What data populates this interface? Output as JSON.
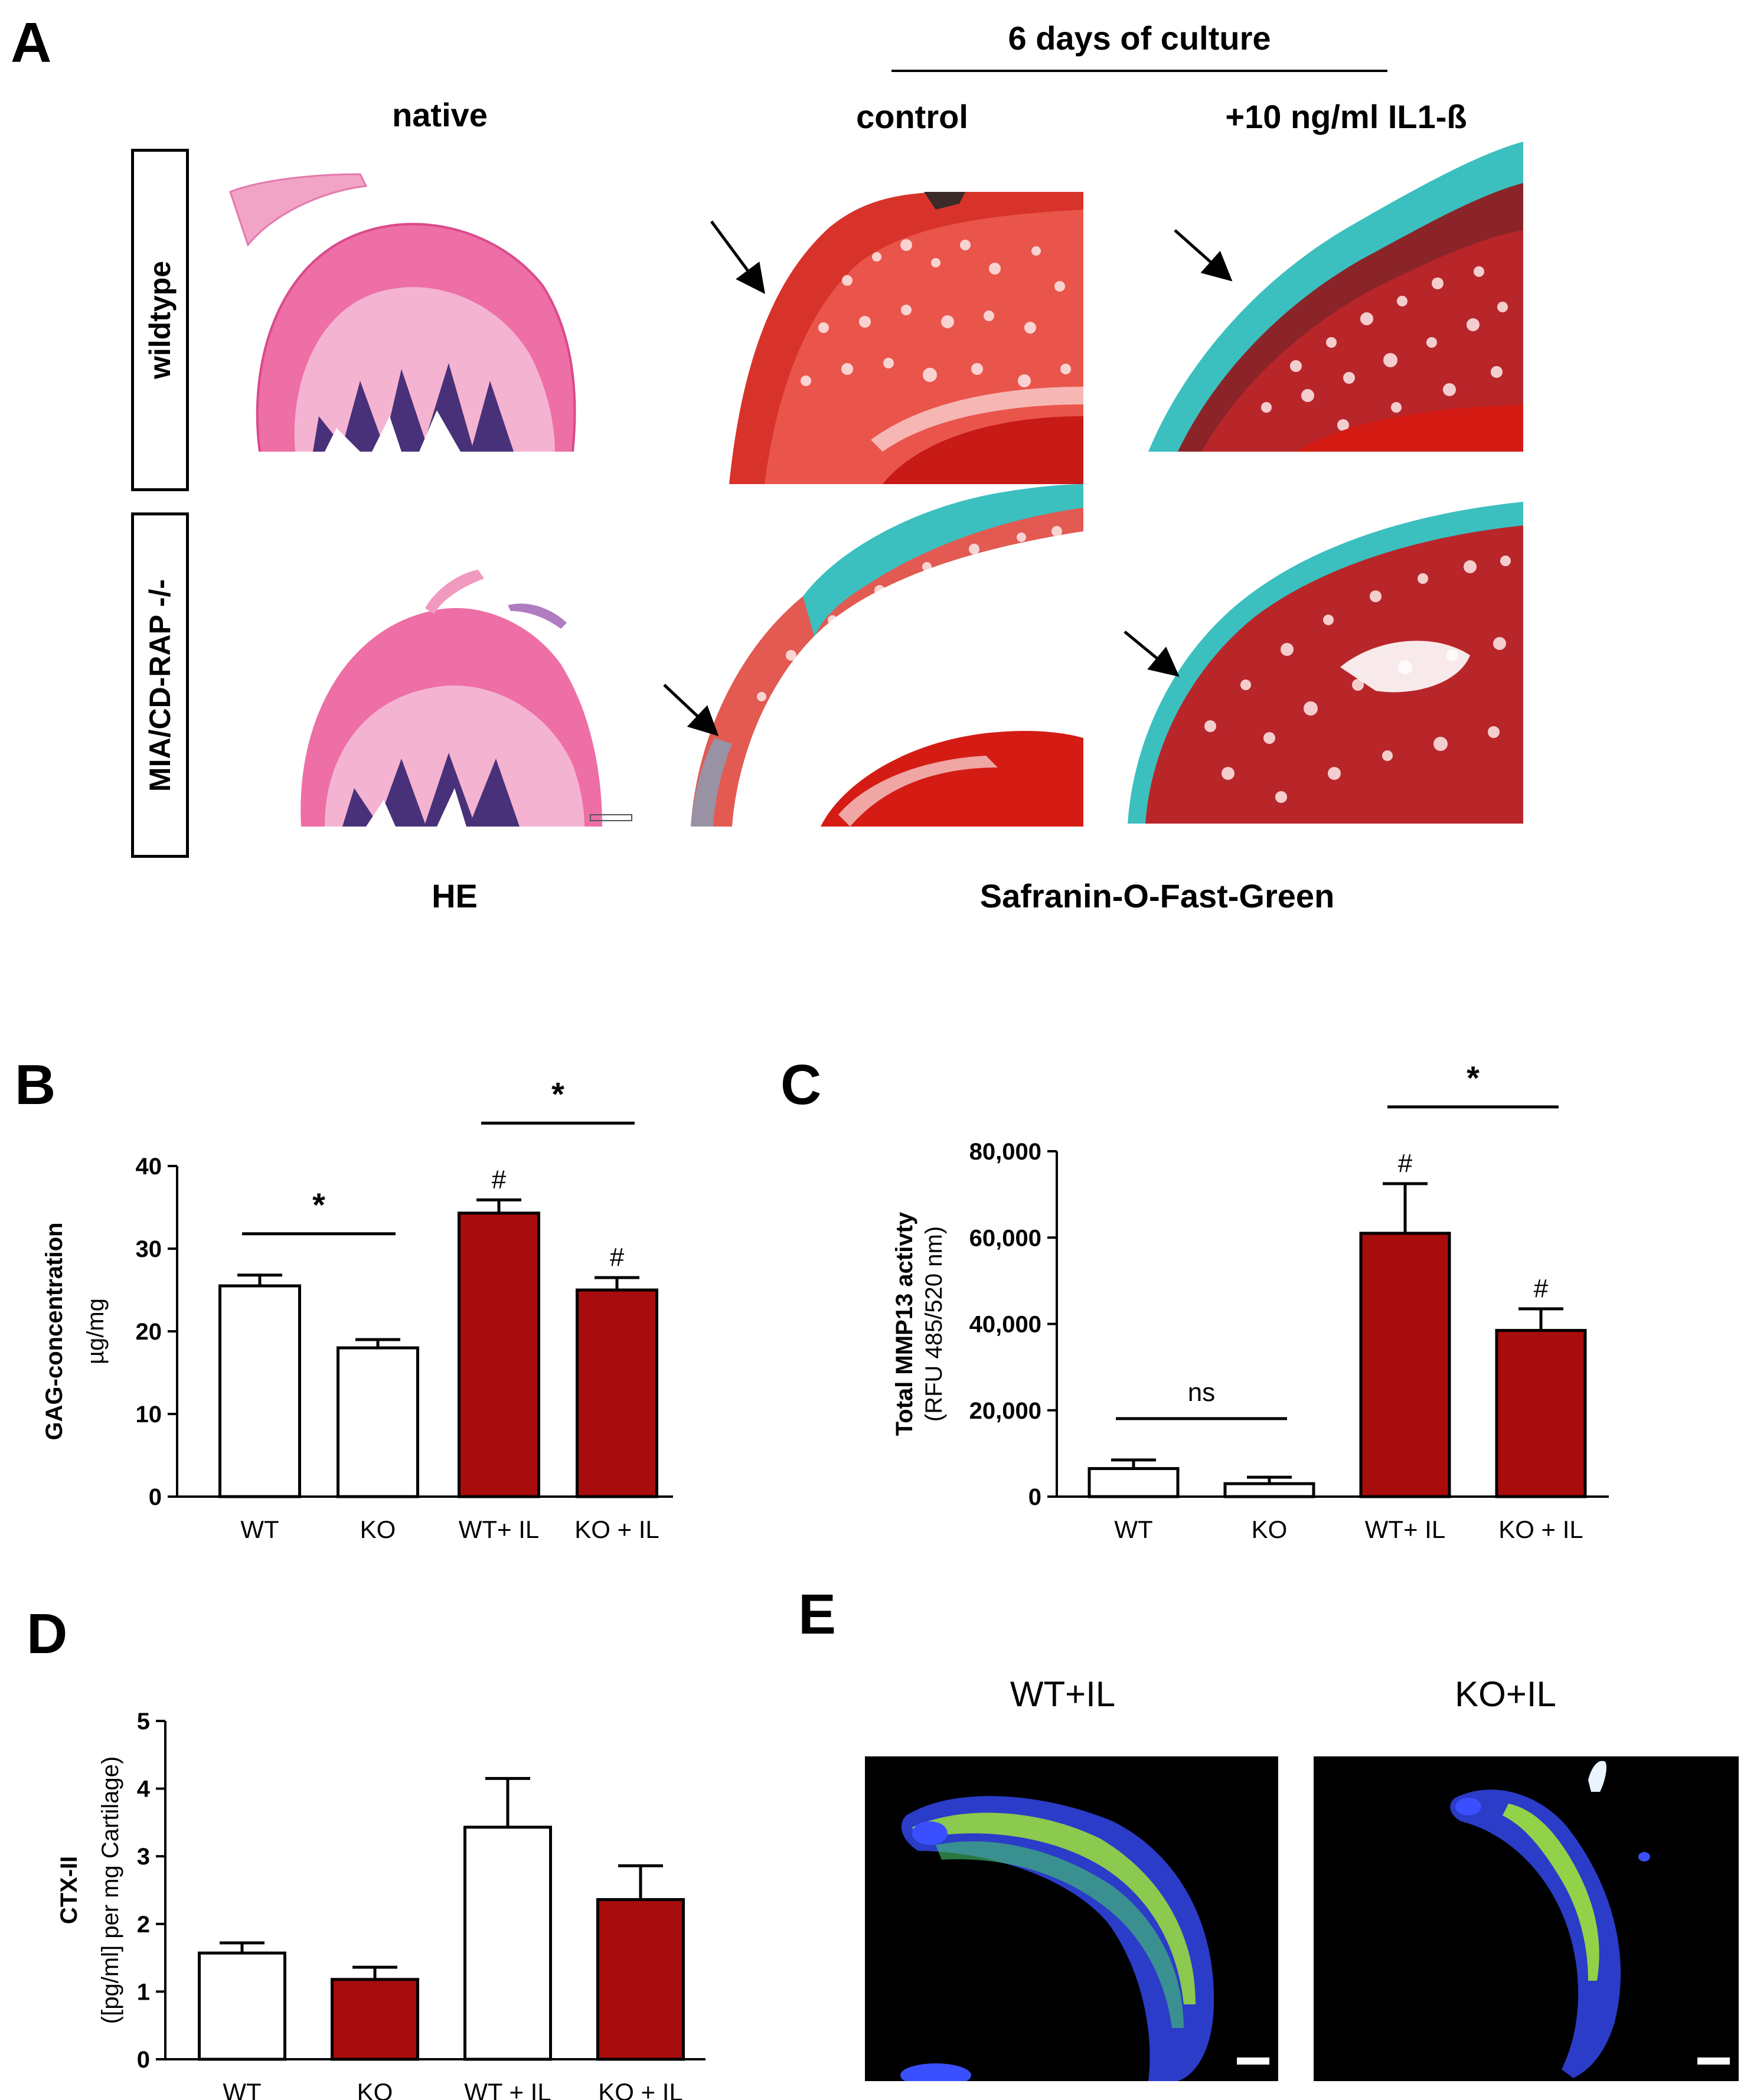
{
  "panel_a": {
    "letter": "A",
    "culture_header": "6 days of culture",
    "col_native": "native",
    "col_control": "control",
    "col_il1b": "+10 ng/ml IL1-ß",
    "row_wildtype": "wildtype",
    "row_ko": "MIA/CD-RAP -/-",
    "stain_he": "HE",
    "stain_safranin": "Safranin-O-Fast-Green"
  },
  "panel_e": {
    "letter": "E",
    "label_wt": "WT+IL",
    "label_ko": "KO+IL"
  },
  "colors": {
    "treated": "#a80c0c",
    "untreated": "#ffffff",
    "safranin": "#d8332a",
    "fast_green": "#3cbfbf",
    "he_pink": "#e8559a"
  },
  "chart_data": [
    {
      "id": "B",
      "letter": "B",
      "type": "bar",
      "categories": [
        "WT",
        "KO",
        "WT+ IL",
        "KO + IL"
      ],
      "values": [
        25.5,
        18,
        34.3,
        25
      ],
      "errors": [
        1.3,
        1.0,
        1.6,
        1.5
      ],
      "fills": [
        "#ffffff",
        "#ffffff",
        "#a80c0c",
        "#a80c0c"
      ],
      "ylabel": "GAG-concentration",
      "ylabel2": "µg/mg",
      "ylim": [
        0,
        40
      ],
      "ticks": [
        0,
        10,
        20,
        30,
        40
      ],
      "tick_labels": [
        "0",
        "10",
        "20",
        "30",
        "40"
      ],
      "bar_marks": [
        "",
        "",
        "#",
        "#"
      ],
      "comparisons": [
        {
          "from": 0,
          "to": 1,
          "label": "*"
        },
        {
          "from": 2,
          "to": 3,
          "label": "*"
        }
      ]
    },
    {
      "id": "C",
      "letter": "C",
      "type": "bar",
      "categories": [
        "WT",
        "KO",
        "WT+ IL",
        "KO + IL"
      ],
      "values": [
        6500,
        3000,
        61000,
        38500
      ],
      "errors": [
        2000,
        1500,
        11500,
        5000
      ],
      "fills": [
        "#ffffff",
        "#ffffff",
        "#a80c0c",
        "#a80c0c"
      ],
      "ylabel": "Total MMP13 activty",
      "ylabel2": "(RFU 485/520 nm)",
      "ylim": [
        0,
        80000
      ],
      "ticks": [
        0,
        20000,
        40000,
        60000,
        80000
      ],
      "tick_labels": [
        "0",
        "20,000",
        "40,000",
        "60,000",
        "80,000"
      ],
      "bar_marks": [
        "",
        "",
        "#",
        "#"
      ],
      "comparisons": [
        {
          "from": 0,
          "to": 1,
          "label": "ns"
        },
        {
          "from": 2,
          "to": 3,
          "label": "*"
        }
      ]
    },
    {
      "id": "D",
      "letter": "D",
      "type": "bar",
      "categories": [
        "WT",
        "KO",
        "WT + IL",
        "KO + IL"
      ],
      "values": [
        1.57,
        1.18,
        3.43,
        2.36
      ],
      "errors": [
        0.15,
        0.18,
        0.72,
        0.5
      ],
      "fills": [
        "#ffffff",
        "#a80c0c",
        "#ffffff",
        "#a80c0c"
      ],
      "ylabel": "CTX-II",
      "ylabel2": "([pg/ml] per mg Cartilage)",
      "ylim": [
        0,
        5
      ],
      "ticks": [
        0,
        1,
        2,
        3,
        4,
        5
      ],
      "tick_labels": [
        "0",
        "1",
        "2",
        "3",
        "4",
        "5"
      ],
      "bar_marks": [
        "",
        "",
        "",
        ""
      ],
      "comparisons": []
    }
  ]
}
